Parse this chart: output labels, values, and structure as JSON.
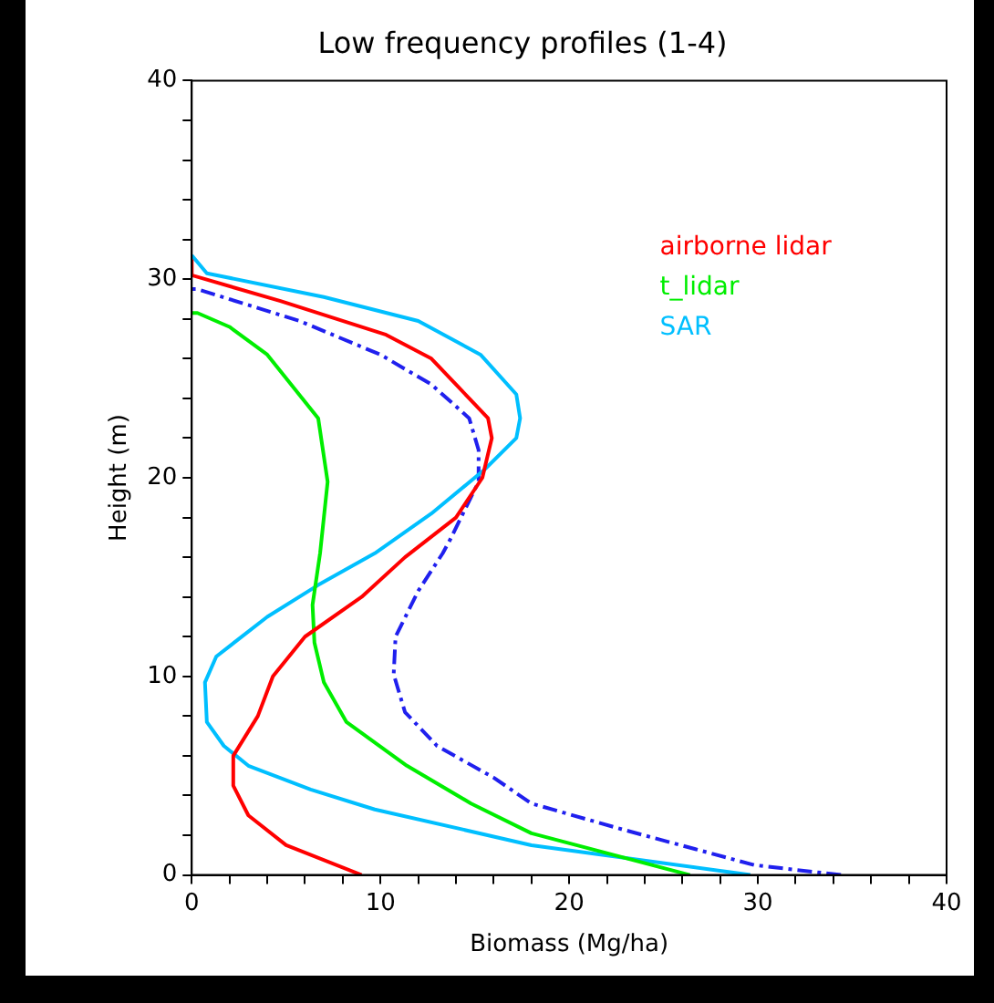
{
  "chart_data": {
    "type": "line",
    "title": "Low frequency profiles (1-4)",
    "xlabel": "Biomass (Mg/ha)",
    "ylabel": "Height (m)",
    "xlim": [
      0,
      40
    ],
    "ylim": [
      0,
      40
    ],
    "xticks": [
      0,
      {
        "value": 2,
        "label": null
      },
      {
        "value": 4,
        "label": null
      },
      {
        "value": 6,
        "label": null
      },
      {
        "value": 8,
        "label": null
      },
      10,
      {
        "value": 12,
        "label": null
      },
      {
        "value": 14,
        "label": null
      },
      {
        "value": 16,
        "label": null
      },
      {
        "value": 18,
        "label": null
      },
      20,
      {
        "value": 22,
        "label": null
      },
      {
        "value": 24,
        "label": null
      },
      {
        "value": 26,
        "label": null
      },
      {
        "value": 28,
        "label": null
      },
      30,
      {
        "value": 32,
        "label": null
      },
      {
        "value": 34,
        "label": null
      },
      {
        "value": 36,
        "label": null
      },
      {
        "value": 38,
        "label": null
      },
      40
    ],
    "yticks": [
      0,
      {
        "value": 2,
        "label": null
      },
      {
        "value": 4,
        "label": null
      },
      {
        "value": 6,
        "label": null
      },
      {
        "value": 8,
        "label": null
      },
      10,
      {
        "value": 12,
        "label": null
      },
      {
        "value": 14,
        "label": null
      },
      {
        "value": 16,
        "label": null
      },
      {
        "value": 18,
        "label": null
      },
      20,
      {
        "value": 22,
        "label": null
      },
      {
        "value": 24,
        "label": null
      },
      {
        "value": 26,
        "label": null
      },
      {
        "value": 28,
        "label": null
      },
      30,
      {
        "value": 32,
        "label": null
      },
      {
        "value": 34,
        "label": null
      },
      {
        "value": 36,
        "label": null
      },
      {
        "value": 38,
        "label": null
      },
      40
    ],
    "grid": false,
    "legend": "top right",
    "marker": "none",
    "series": [
      {
        "name": "airborne lidar",
        "color": "#ff0000",
        "x": [
          9,
          5,
          3,
          2.2,
          2.2,
          3.5,
          4.3,
          6,
          9,
          11.3,
          14,
          15.4,
          15.9,
          15.7,
          14.7,
          12.7,
          10.3,
          4.7,
          0,
          0
        ],
        "values": [
          0,
          1.5,
          3,
          4.5,
          6,
          8,
          10,
          12,
          14,
          16,
          18,
          20,
          22,
          23,
          24,
          26,
          27.2,
          28.9,
          30.2,
          31
        ]
      },
      {
        "name": "t_lidar",
        "color": "#00ee00",
        "x": [
          26.4,
          18,
          14.8,
          11.4,
          8.2,
          7,
          6.5,
          6.4,
          6.8,
          7.2,
          6.7,
          4,
          2,
          0.3,
          0
        ],
        "values": [
          0,
          2.1,
          3.6,
          5.5,
          7.7,
          9.7,
          11.7,
          13.6,
          16.2,
          19.8,
          23,
          26.2,
          27.6,
          28.3,
          28.3
        ]
      },
      {
        "name": "SAR",
        "color": "#00bfff",
        "x": [
          29.6,
          18,
          9.7,
          6.3,
          3,
          1.7,
          0.8,
          0.7,
          1.3,
          4,
          6.7,
          9.7,
          12.7,
          15.5,
          17.2,
          17.4,
          17.2,
          15.3,
          12,
          7,
          0.8,
          0
        ],
        "values": [
          0,
          1.5,
          3.3,
          4.3,
          5.5,
          6.5,
          7.7,
          9.7,
          11,
          13,
          14.6,
          16.2,
          18.2,
          20.4,
          22,
          23,
          24.2,
          26.2,
          27.9,
          29.1,
          30.3,
          31.2
        ]
      },
      {
        "color": "#2020ee",
        "line_style": "dashed",
        "x": [
          34.4,
          29.8,
          22.8,
          18,
          16,
          13,
          11.3,
          10.7,
          10.8,
          12,
          13.3,
          13.7,
          15.2,
          15.2,
          14.7,
          12.7,
          10,
          5.7,
          0.3,
          0
        ],
        "values": [
          0,
          0.5,
          2.3,
          3.6,
          4.9,
          6.5,
          8.2,
          10.1,
          12,
          14.3,
          16.2,
          16.9,
          19.8,
          21.4,
          23,
          24.7,
          26.2,
          27.9,
          29.5,
          29.5
        ]
      }
    ]
  }
}
